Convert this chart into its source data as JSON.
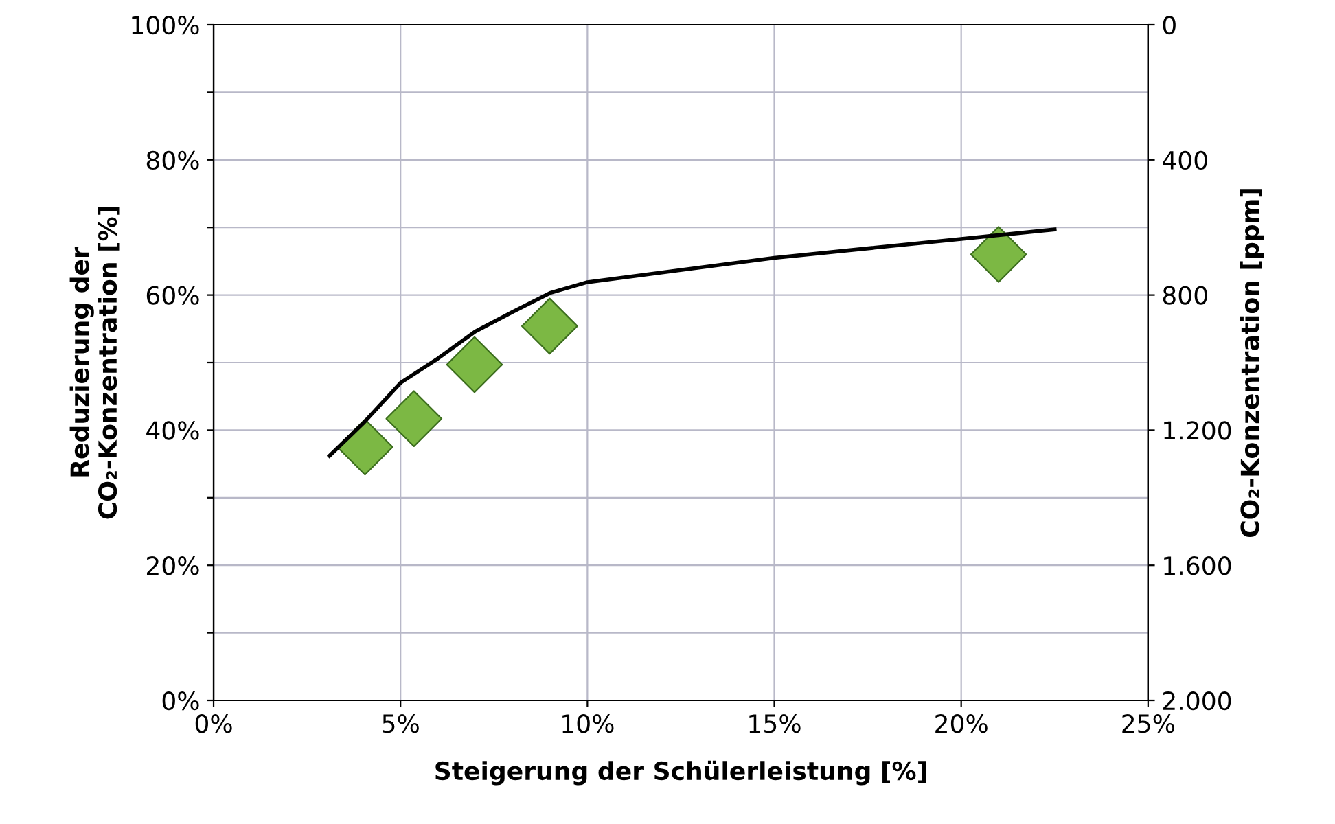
{
  "chart_data": {
    "type": "scatter",
    "xlabel": "Steigerung der Schülerleistung [%]",
    "ylabel": "Reduzierung der\nCO₂-Konzentration [%]",
    "y2label": "CO₂-Konzentration [ppm]",
    "series": [
      {
        "color": "#7cb844",
        "marker": "diamond",
        "x": [
          4.05,
          5.36,
          6.98,
          8.99,
          21.0
        ],
        "values": [
          37.5,
          41.7,
          49.7,
          55.4,
          66.0
        ]
      },
      {
        "type": "line",
        "color": "#000000",
        "marker": "none",
        "line_style": "solid",
        "x": [
          3.1,
          4.0,
          5.0,
          6.0,
          7.0,
          8.0,
          9.0,
          10.0,
          15.0,
          20.0,
          22.5
        ],
        "values": [
          36.2,
          41.0,
          47.0,
          50.6,
          54.6,
          57.5,
          60.3,
          61.9,
          65.5,
          68.3,
          69.7
        ]
      }
    ],
    "xlim": [
      0,
      25
    ],
    "xticks": [
      {
        "value": 0,
        "label": "0%"
      },
      {
        "value": 5,
        "label": "5%"
      },
      {
        "value": 10,
        "label": "10%"
      },
      {
        "value": 15,
        "label": "15%"
      },
      {
        "value": 20,
        "label": "20%"
      },
      {
        "value": 25,
        "label": "25%"
      }
    ],
    "ylim": [
      0,
      100
    ],
    "yticks": [
      {
        "value": 0,
        "label": "0%"
      },
      {
        "value": 10,
        "label": null
      },
      {
        "value": 20,
        "label": "20%"
      },
      {
        "value": 30,
        "label": null
      },
      {
        "value": 40,
        "label": "40%"
      },
      {
        "value": 50,
        "label": null
      },
      {
        "value": 60,
        "label": "60%"
      },
      {
        "value": 70,
        "label": null
      },
      {
        "value": 80,
        "label": "80%"
      },
      {
        "value": 90,
        "label": null
      },
      {
        "value": 100,
        "label": "100%"
      }
    ],
    "y2lim": [
      2000,
      0
    ],
    "y2ticks": [
      {
        "value": 0,
        "label": "0"
      },
      {
        "value": 400,
        "label": "400"
      },
      {
        "value": 800,
        "label": "800"
      },
      {
        "value": 1200,
        "label": "1.200"
      },
      {
        "value": 1600,
        "label": "1.600"
      },
      {
        "value": 2000,
        "label": "2.000"
      }
    ],
    "grid": true
  }
}
